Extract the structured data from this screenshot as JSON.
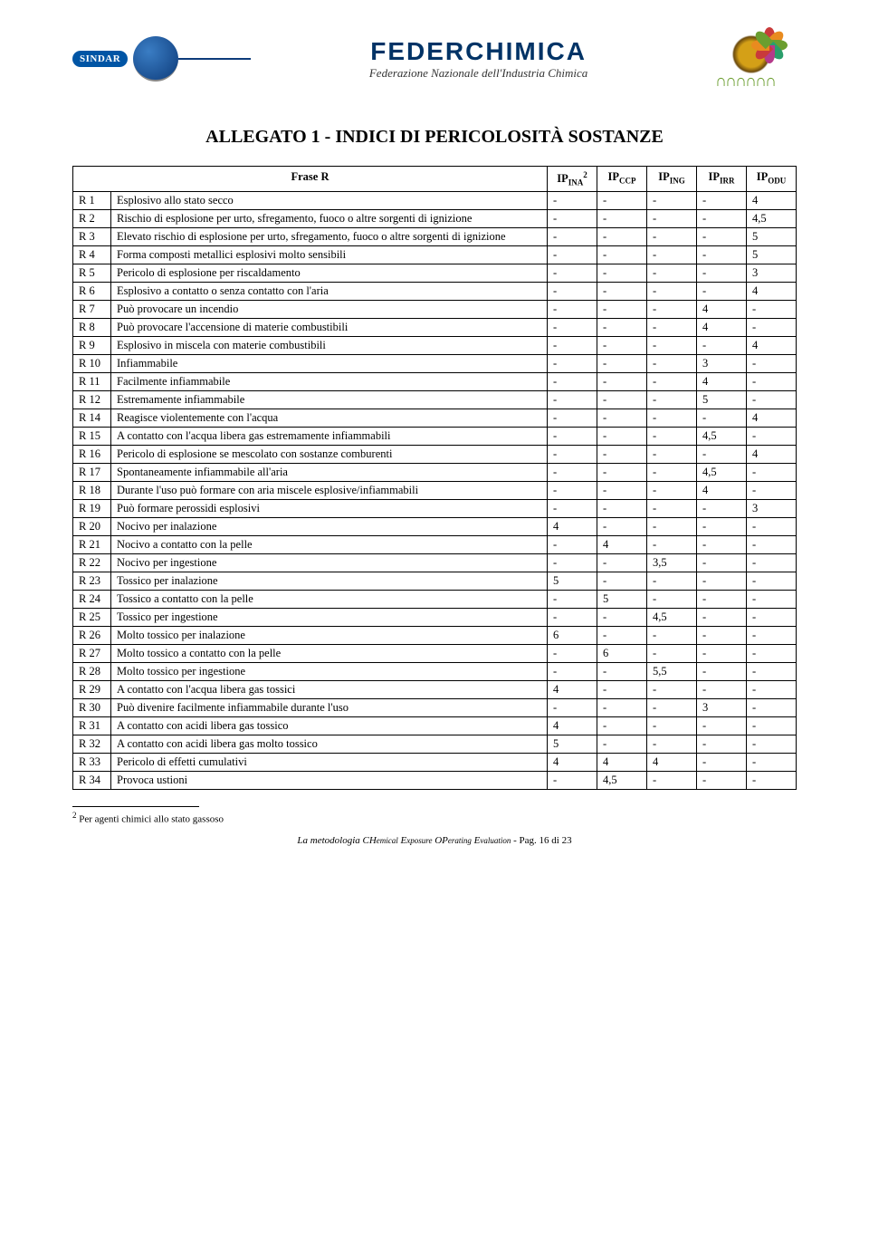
{
  "header": {
    "sindar_label": "SINDAR",
    "org_name": "FEDERCHIMICA",
    "org_sub": "Federazione Nazionale dell'Industria Chimica"
  },
  "title": "ALLEGATO 1 - INDICI DI PERICOLOSITÀ SOSTANZE",
  "table": {
    "columns": [
      "Frase R",
      "IP_INA^2",
      "IP_CCP",
      "IP_ING",
      "IP_IRR",
      "IP_ODU"
    ],
    "col_headers_html": [
      "Frase R",
      "IP<sub>INA</sub><sup>2</sup>",
      "IP<sub>CCP</sub>",
      "IP<sub>ING</sub>",
      "IP<sub>IRR</sub>",
      "IP<sub>ODU</sub>"
    ],
    "rows": [
      {
        "c": "R 1",
        "d": "Esplosivo allo stato secco",
        "v": [
          "-",
          "-",
          "-",
          "-",
          "4"
        ]
      },
      {
        "c": "R 2",
        "d": "Rischio di esplosione per urto, sfregamento, fuoco o altre sorgenti di ignizione",
        "v": [
          "-",
          "-",
          "-",
          "-",
          "4,5"
        ]
      },
      {
        "c": "R 3",
        "d": "Elevato rischio di esplosione per urto, sfregamento, fuoco o altre sorgenti di ignizione",
        "v": [
          "-",
          "-",
          "-",
          "-",
          "5"
        ]
      },
      {
        "c": "R 4",
        "d": "Forma composti metallici esplosivi molto sensibili",
        "v": [
          "-",
          "-",
          "-",
          "-",
          "5"
        ]
      },
      {
        "c": "R 5",
        "d": "Pericolo di esplosione per riscaldamento",
        "v": [
          "-",
          "-",
          "-",
          "-",
          "3"
        ]
      },
      {
        "c": "R 6",
        "d": "Esplosivo a contatto o senza contatto con l'aria",
        "v": [
          "-",
          "-",
          "-",
          "-",
          "4"
        ]
      },
      {
        "c": "R 7",
        "d": "Può provocare un incendio",
        "v": [
          "-",
          "-",
          "-",
          "4",
          "-"
        ]
      },
      {
        "c": "R 8",
        "d": "Può provocare l'accensione di materie combustibili",
        "v": [
          "-",
          "-",
          "-",
          "4",
          "-"
        ]
      },
      {
        "c": "R 9",
        "d": "Esplosivo in miscela con materie combustibili",
        "v": [
          "-",
          "-",
          "-",
          "-",
          "4"
        ]
      },
      {
        "c": "R 10",
        "d": "Infiammabile",
        "v": [
          "-",
          "-",
          "-",
          "3",
          "-"
        ]
      },
      {
        "c": "R 11",
        "d": "Facilmente infiammabile",
        "v": [
          "-",
          "-",
          "-",
          "4",
          "-"
        ]
      },
      {
        "c": "R 12",
        "d": "Estremamente infiammabile",
        "v": [
          "-",
          "-",
          "-",
          "5",
          "-"
        ]
      },
      {
        "c": "R 14",
        "d": "Reagisce violentemente con l'acqua",
        "v": [
          "-",
          "-",
          "-",
          "-",
          "4"
        ]
      },
      {
        "c": "R 15",
        "d": "A contatto con l'acqua libera gas estremamente infiammabili",
        "v": [
          "-",
          "-",
          "-",
          "4,5",
          "-"
        ]
      },
      {
        "c": "R 16",
        "d": "Pericolo di esplosione se mescolato con sostanze comburenti",
        "v": [
          "-",
          "-",
          "-",
          "-",
          "4"
        ]
      },
      {
        "c": "R 17",
        "d": "Spontaneamente infiammabile all'aria",
        "v": [
          "-",
          "-",
          "-",
          "4,5",
          "-"
        ]
      },
      {
        "c": "R 18",
        "d": "Durante l'uso può formare con aria miscele esplosive/infiammabili",
        "v": [
          "-",
          "-",
          "-",
          "4",
          "-"
        ]
      },
      {
        "c": "R 19",
        "d": "Può formare perossidi esplosivi",
        "v": [
          "-",
          "-",
          "-",
          "-",
          "3"
        ]
      },
      {
        "c": "R 20",
        "d": "Nocivo per inalazione",
        "v": [
          "4",
          "-",
          "-",
          "-",
          "-"
        ]
      },
      {
        "c": "R 21",
        "d": "Nocivo a contatto con la pelle",
        "v": [
          "-",
          "4",
          "-",
          "-",
          "-"
        ]
      },
      {
        "c": "R 22",
        "d": "Nocivo per ingestione",
        "v": [
          "-",
          "-",
          "3,5",
          "-",
          "-"
        ]
      },
      {
        "c": "R 23",
        "d": "Tossico per inalazione",
        "v": [
          "5",
          "-",
          "-",
          "-",
          "-"
        ]
      },
      {
        "c": "R 24",
        "d": "Tossico a contatto con la pelle",
        "v": [
          "-",
          "5",
          "-",
          "-",
          "-"
        ]
      },
      {
        "c": "R 25",
        "d": "Tossico per ingestione",
        "v": [
          "-",
          "-",
          "4,5",
          "-",
          "-"
        ]
      },
      {
        "c": "R 26",
        "d": "Molto tossico per inalazione",
        "v": [
          "6",
          "-",
          "-",
          "-",
          "-"
        ]
      },
      {
        "c": "R 27",
        "d": "Molto tossico a contatto con la pelle",
        "v": [
          "-",
          "6",
          "-",
          "-",
          "-"
        ]
      },
      {
        "c": "R 28",
        "d": "Molto tossico per ingestione",
        "v": [
          "-",
          "-",
          "5,5",
          "-",
          "-"
        ]
      },
      {
        "c": "R 29",
        "d": "A contatto con l'acqua libera gas tossici",
        "v": [
          "4",
          "-",
          "-",
          "-",
          "-"
        ]
      },
      {
        "c": "R 30",
        "d": "Può divenire facilmente infiammabile durante l'uso",
        "v": [
          "-",
          "-",
          "-",
          "3",
          "-"
        ]
      },
      {
        "c": "R 31",
        "d": "A contatto con acidi libera gas tossico",
        "v": [
          "4",
          "-",
          "-",
          "-",
          "-"
        ]
      },
      {
        "c": "R 32",
        "d": "A contatto con acidi libera gas molto tossico",
        "v": [
          "5",
          "-",
          "-",
          "-",
          "-"
        ]
      },
      {
        "c": "R 33",
        "d": "Pericolo di effetti cumulativi",
        "v": [
          "4",
          "4",
          "4",
          "-",
          "-"
        ]
      },
      {
        "c": "R 34",
        "d": "Provoca ustioni",
        "v": [
          "-",
          "4,5",
          "-",
          "-",
          "-"
        ]
      }
    ]
  },
  "footnote": {
    "marker": "2",
    "text": "Per agenti chimici allo stato gassoso"
  },
  "pager": {
    "text": "La metodologia CHemical Exposure OPerating Evaluation - Pag. 16 di 23",
    "method": "La metodologia CH",
    "method_small": "emical",
    "method2": " E",
    "method_small2": "xposure",
    "method3": " OP",
    "method_small3": "erating",
    "method4": " E",
    "method_small4": "valuation",
    "tail": " - Pag. 16 di 23"
  },
  "colors": {
    "text": "#000000",
    "org_blue": "#003366",
    "sindar_blue": "#0055a5",
    "green": "#6b9e2f",
    "burst": [
      "#c93a3a",
      "#e98b1f",
      "#6b9e2f",
      "#2a9e6b",
      "#b53a8a"
    ]
  }
}
